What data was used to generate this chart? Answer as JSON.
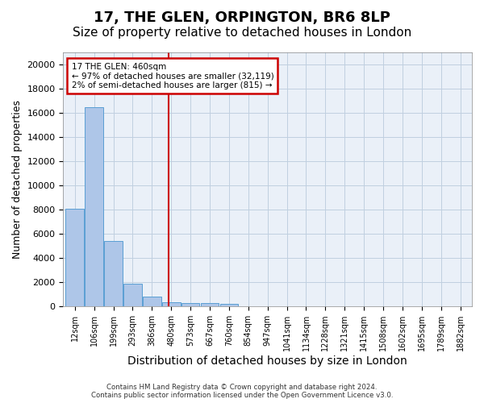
{
  "title": "17, THE GLEN, ORPINGTON, BR6 8LP",
  "subtitle": "Size of property relative to detached houses in London",
  "xlabel": "Distribution of detached houses by size in London",
  "ylabel": "Number of detached properties",
  "bar_values": [
    8100,
    16500,
    5400,
    1850,
    800,
    350,
    300,
    250,
    200,
    0,
    0,
    0,
    0,
    0,
    0,
    0,
    0,
    0,
    0,
    0,
    0
  ],
  "categories": [
    "12sqm",
    "106sqm",
    "199sqm",
    "293sqm",
    "386sqm",
    "480sqm",
    "573sqm",
    "667sqm",
    "760sqm",
    "854sqm",
    "947sqm",
    "1041sqm",
    "1134sqm",
    "1228sqm",
    "1321sqm",
    "1415sqm",
    "1508sqm",
    "1602sqm",
    "1695sqm",
    "1789sqm",
    "1882sqm"
  ],
  "bar_color": "#aec6e8",
  "bar_edge_color": "#5a9fd4",
  "background_color": "#eaf0f8",
  "vline_color": "#cc0000",
  "annotation_text": "17 THE GLEN: 460sqm\n← 97% of detached houses are smaller (32,119)\n2% of semi-detached houses are larger (815) →",
  "annotation_box_color": "#cc0000",
  "ylim": [
    0,
    21000
  ],
  "yticks": [
    0,
    2000,
    4000,
    6000,
    8000,
    10000,
    12000,
    14000,
    16000,
    18000,
    20000
  ],
  "footer_line1": "Contains HM Land Registry data © Crown copyright and database right 2024.",
  "footer_line2": "Contains public sector information licensed under the Open Government Licence v3.0.",
  "grid_color": "#c0cfe0",
  "title_fontsize": 13,
  "subtitle_fontsize": 11,
  "axis_label_fontsize": 9,
  "tick_fontsize": 7
}
